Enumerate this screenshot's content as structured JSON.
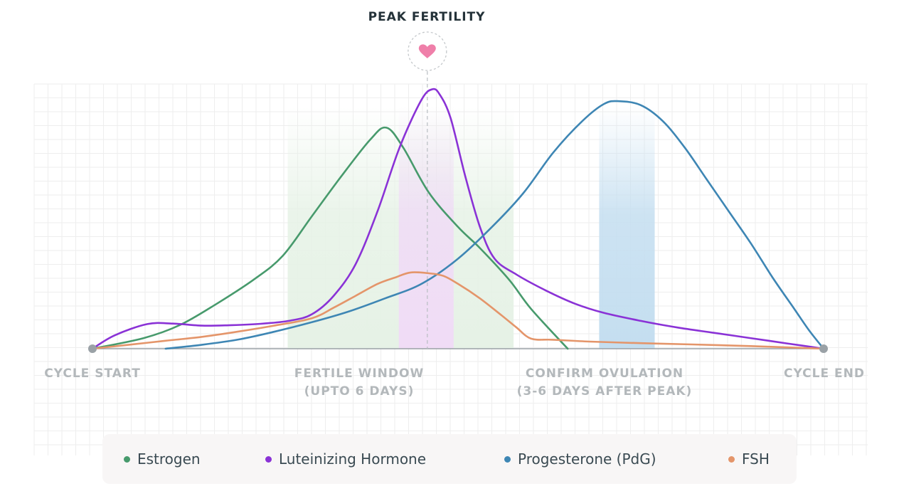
{
  "header": {
    "title": "PEAK FERTILITY",
    "marker_icon": "heart-icon"
  },
  "labels": {
    "cycle_start": "CYCLE START",
    "fertile_window_line1": "FERTILE WINDOW",
    "fertile_window_line2": "(UPTO 6 DAYS)",
    "confirm_ovulation_line1": "CONFIRM OVULATION",
    "confirm_ovulation_line2": "(3-6 DAYS AFTER PEAK)",
    "cycle_end": "CYCLE END"
  },
  "legend": {
    "items": [
      {
        "label": "Estrogen",
        "color": "#479a6c"
      },
      {
        "label": "Luteinizing Hormone",
        "color": "#8a32d6"
      },
      {
        "label": "Progesterone (PdG)",
        "color": "#3e86b4"
      },
      {
        "label": "FSH",
        "color": "#e4956a"
      }
    ]
  },
  "colors": {
    "fertile_window": "#e6f2e6",
    "peak_band": "#f0dcf6",
    "confirm_band": "#c4def0",
    "baseline": "#9aa1a6",
    "heart": "#ef7fa9",
    "grid": "#eeeeee"
  },
  "chart_data": {
    "type": "line",
    "title": "PEAK FERTILITY",
    "xlim": [
      0,
      100
    ],
    "ylim": [
      0,
      100
    ],
    "grid": true,
    "legend_position": "bottom",
    "peak_x": 45.8,
    "regions": [
      {
        "name": "fertile_window",
        "x_start": 26.7,
        "x_end": 57.6
      },
      {
        "name": "peak_band",
        "x_start": 41.9,
        "x_end": 49.4
      },
      {
        "name": "confirm_band",
        "x_start": 69.3,
        "x_end": 76.9
      }
    ],
    "series": [
      {
        "name": "Estrogen",
        "color": "#479a6c",
        "points": [
          [
            0,
            0
          ],
          [
            7,
            4
          ],
          [
            12,
            9
          ],
          [
            17,
            17
          ],
          [
            22,
            26
          ],
          [
            26,
            35
          ],
          [
            30,
            50
          ],
          [
            34,
            65
          ],
          [
            38,
            79
          ],
          [
            40.2,
            83.5
          ],
          [
            42.5,
            76
          ],
          [
            46,
            59
          ],
          [
            50,
            46
          ],
          [
            53,
            38
          ],
          [
            57,
            26
          ],
          [
            60,
            15
          ],
          [
            65,
            0
          ]
        ]
      },
      {
        "name": "Luteinizing Hormone",
        "color": "#8a32d6",
        "points": [
          [
            0,
            0
          ],
          [
            3,
            5
          ],
          [
            7.5,
            9.3
          ],
          [
            11,
            9.5
          ],
          [
            15,
            8.7
          ],
          [
            19,
            8.9
          ],
          [
            23,
            9.4
          ],
          [
            27,
            10.6
          ],
          [
            30,
            13
          ],
          [
            33,
            20
          ],
          [
            36,
            32
          ],
          [
            39,
            52
          ],
          [
            42,
            76
          ],
          [
            45,
            94
          ],
          [
            46.5,
            98
          ],
          [
            47.5,
            96
          ],
          [
            49,
            87
          ],
          [
            51,
            65
          ],
          [
            53,
            46
          ],
          [
            55,
            34
          ],
          [
            58,
            28
          ],
          [
            62,
            22
          ],
          [
            66,
            17
          ],
          [
            70,
            13.5
          ],
          [
            75,
            10.5
          ],
          [
            80,
            8
          ],
          [
            85,
            6
          ],
          [
            90,
            4
          ],
          [
            95,
            2
          ],
          [
            100,
            0
          ]
        ]
      },
      {
        "name": "Progesterone (PdG)",
        "color": "#3e86b4",
        "points": [
          [
            10,
            0
          ],
          [
            15,
            1.5
          ],
          [
            20,
            3.5
          ],
          [
            25,
            6.5
          ],
          [
            30,
            10
          ],
          [
            35,
            14
          ],
          [
            40,
            19
          ],
          [
            45,
            24.5
          ],
          [
            50,
            34
          ],
          [
            55,
            47
          ],
          [
            59,
            59
          ],
          [
            63,
            74
          ],
          [
            67,
            86
          ],
          [
            70,
            92.5
          ],
          [
            72,
            93.5
          ],
          [
            75,
            92
          ],
          [
            78,
            86
          ],
          [
            81,
            76
          ],
          [
            84,
            64
          ],
          [
            87,
            52
          ],
          [
            90,
            40
          ],
          [
            93,
            27
          ],
          [
            96,
            15
          ],
          [
            98,
            7
          ],
          [
            100,
            0
          ]
        ]
      },
      {
        "name": "FSH",
        "color": "#e4956a",
        "points": [
          [
            0,
            0
          ],
          [
            5,
            1.5
          ],
          [
            10,
            3
          ],
          [
            15,
            4.5
          ],
          [
            20,
            6.5
          ],
          [
            25,
            8.8
          ],
          [
            30,
            11.5
          ],
          [
            33,
            15.5
          ],
          [
            36,
            20
          ],
          [
            39,
            24.5
          ],
          [
            41.5,
            27
          ],
          [
            43.5,
            28.8
          ],
          [
            46,
            28.5
          ],
          [
            48,
            27.5
          ],
          [
            50,
            24.5
          ],
          [
            53,
            19
          ],
          [
            56,
            12.5
          ],
          [
            58,
            8
          ],
          [
            60,
            3.8
          ],
          [
            63,
            3.4
          ],
          [
            68,
            2.7
          ],
          [
            75,
            2.1
          ],
          [
            82,
            1.6
          ],
          [
            90,
            1
          ],
          [
            100,
            0
          ]
        ]
      }
    ]
  }
}
